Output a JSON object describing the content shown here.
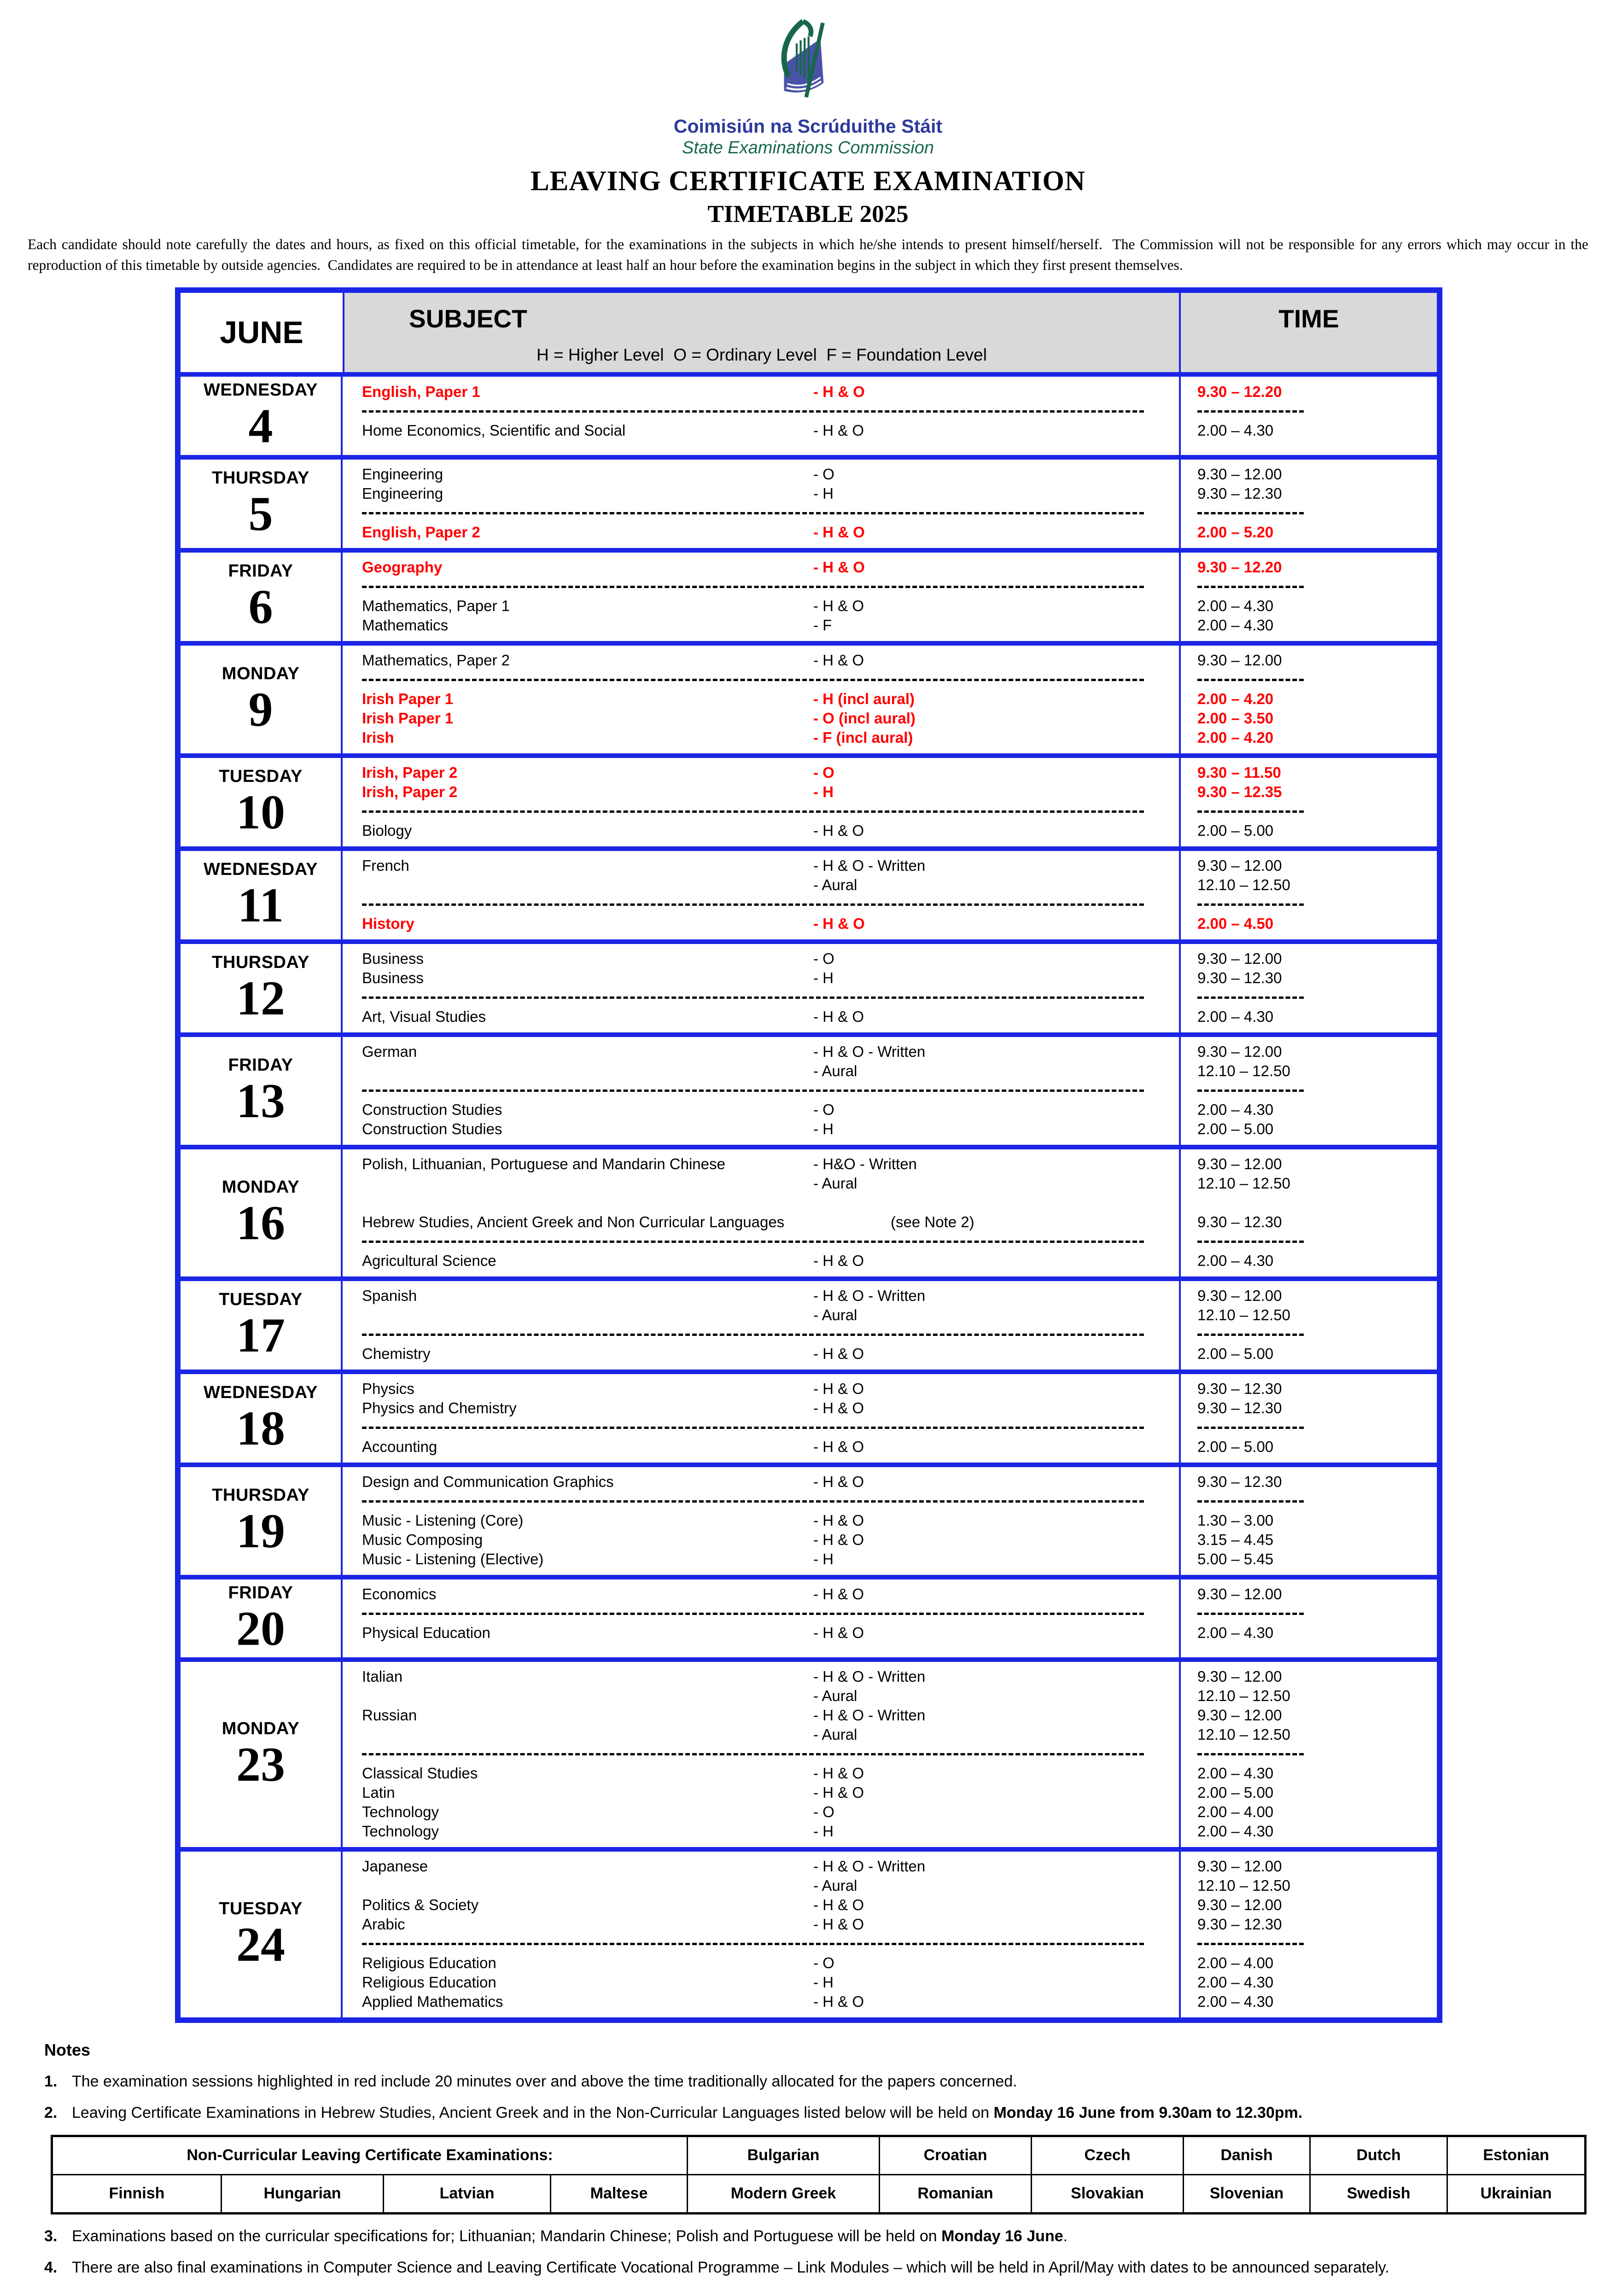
{
  "logo": {
    "irish_name": "Coimisiún na Scrúduithe Stáit",
    "english_name": "State Examinations Commission"
  },
  "title": "LEAVING CERTIFICATE EXAMINATION",
  "subtitle": "TIMETABLE 2025",
  "intro": "Each candidate should note carefully the dates and hours, as fixed on this official timetable, for the examinations in the subjects in which he/she intends to present himself/herself.  The Commission will not be responsible for any errors which may occur in the reproduction of this timetable by outside agencies.  Candidates are required to be in attendance at least half an hour before the examination begins in the subject in which they first present themselves.",
  "colors": {
    "border_blue": "#1b25e5",
    "highlight_red": "#ff0000",
    "header_gray": "#d9d9d9",
    "logo_blue": "#2c3a9c",
    "logo_green": "#17684a",
    "book_blue": "#4a52a8"
  },
  "timetable": {
    "month": "JUNE",
    "col_subject": "SUBJECT",
    "col_time": "TIME",
    "legend": "H = Higher Level  O = Ordinary Level  F = Foundation Level",
    "days": [
      {
        "name": "WEDNESDAY",
        "date": "4",
        "lines": [
          {
            "t": "e",
            "subject": "English, Paper 1",
            "level": "- H & O",
            "time": "9.30 – 12.20",
            "red": true
          },
          {
            "t": "s"
          },
          {
            "t": "e",
            "subject": "Home Economics, Scientific and Social",
            "level": "- H & O",
            "time": "2.00 – 4.30"
          }
        ]
      },
      {
        "name": "THURSDAY",
        "date": "5",
        "lines": [
          {
            "t": "e",
            "subject": "Engineering",
            "level": "- O",
            "time": "9.30 – 12.00"
          },
          {
            "t": "e",
            "subject": "Engineering",
            "level": "- H",
            "time": "9.30 – 12.30"
          },
          {
            "t": "s"
          },
          {
            "t": "e",
            "subject": "English, Paper 2",
            "level": "- H & O",
            "time": "2.00 – 5.20",
            "red": true
          }
        ]
      },
      {
        "name": "FRIDAY",
        "date": "6",
        "lines": [
          {
            "t": "e",
            "subject": "Geography",
            "level": "- H & O",
            "time": "9.30 – 12.20",
            "red": true
          },
          {
            "t": "s"
          },
          {
            "t": "e",
            "subject": "Mathematics, Paper 1",
            "level": "- H & O",
            "time": "2.00 – 4.30"
          },
          {
            "t": "e",
            "subject": "Mathematics",
            "level": "- F",
            "time": "2.00 – 4.30"
          }
        ]
      },
      {
        "name": "MONDAY",
        "date": "9",
        "lines": [
          {
            "t": "e",
            "subject": "Mathematics, Paper 2",
            "level": "- H & O",
            "time": "9.30 – 12.00"
          },
          {
            "t": "s"
          },
          {
            "t": "e",
            "subject": "Irish Paper 1",
            "level": "- H (incl aural)",
            "time": "2.00 – 4.20",
            "red": true
          },
          {
            "t": "e",
            "subject": "Irish Paper 1",
            "level": "- O (incl aural)",
            "time": "2.00 – 3.50",
            "red": true
          },
          {
            "t": "e",
            "subject": "Irish",
            "level": "- F (incl aural)",
            "time": "2.00 – 4.20",
            "red": true
          }
        ]
      },
      {
        "name": "TUESDAY",
        "date": "10",
        "lines": [
          {
            "t": "e",
            "subject": "Irish, Paper 2",
            "level": "- O",
            "time": "9.30 – 11.50",
            "red": true
          },
          {
            "t": "e",
            "subject": "Irish, Paper 2",
            "level": "- H",
            "time": "9.30 – 12.35",
            "red": true
          },
          {
            "t": "s"
          },
          {
            "t": "e",
            "subject": "Biology",
            "level": "- H & O",
            "time": "2.00 – 5.00"
          }
        ]
      },
      {
        "name": "WEDNESDAY",
        "date": "11",
        "lines": [
          {
            "t": "e",
            "subject": "French",
            "level": "- H & O - Written",
            "time": "9.30 – 12.00"
          },
          {
            "t": "e",
            "subject": "",
            "level": "- Aural",
            "time": "12.10 – 12.50"
          },
          {
            "t": "s"
          },
          {
            "t": "e",
            "subject": "History",
            "level": "- H & O",
            "time": "2.00 – 4.50",
            "red": true
          }
        ]
      },
      {
        "name": "THURSDAY",
        "date": "12",
        "lines": [
          {
            "t": "e",
            "subject": "Business",
            "level": "- O",
            "time": "9.30 – 12.00"
          },
          {
            "t": "e",
            "subject": "Business",
            "level": "- H",
            "time": "9.30 – 12.30"
          },
          {
            "t": "s"
          },
          {
            "t": "e",
            "subject": "Art, Visual Studies",
            "level": "- H & O",
            "time": "2.00 – 4.30"
          }
        ]
      },
      {
        "name": "FRIDAY",
        "date": "13",
        "lines": [
          {
            "t": "e",
            "subject": "German",
            "level": "- H & O - Written",
            "time": "9.30 – 12.00"
          },
          {
            "t": "e",
            "subject": "",
            "level": "- Aural",
            "time": "12.10 – 12.50"
          },
          {
            "t": "s"
          },
          {
            "t": "e",
            "subject": "Construction Studies",
            "level": "- O",
            "time": "2.00 – 4.30"
          },
          {
            "t": "e",
            "subject": "Construction Studies",
            "level": "- H",
            "time": "2.00 – 5.00"
          }
        ]
      },
      {
        "name": "MONDAY",
        "date": "16",
        "lines": [
          {
            "t": "e",
            "subject": "Polish, Lithuanian, Portuguese and Mandarin Chinese",
            "level": "- H&O - Written",
            "time": "9.30 – 12.00"
          },
          {
            "t": "e",
            "subject": "",
            "level": "- Aural",
            "time": "12.10 – 12.50"
          },
          {
            "t": "g"
          },
          {
            "t": "e",
            "subject": "Hebrew Studies, Ancient Greek and Non Curricular Languages",
            "level": "(see Note 2)",
            "time": "9.30 – 12.30",
            "shift": true
          },
          {
            "t": "s"
          },
          {
            "t": "e",
            "subject": "Agricultural Science",
            "level": "- H & O",
            "time": "2.00 – 4.30"
          }
        ]
      },
      {
        "name": "TUESDAY",
        "date": "17",
        "lines": [
          {
            "t": "e",
            "subject": "Spanish",
            "level": "- H & O - Written",
            "time": "9.30 – 12.00"
          },
          {
            "t": "e",
            "subject": "",
            "level": "- Aural",
            "time": "12.10 – 12.50"
          },
          {
            "t": "s"
          },
          {
            "t": "e",
            "subject": "Chemistry",
            "level": "- H & O",
            "time": "2.00 – 5.00"
          }
        ]
      },
      {
        "name": "WEDNESDAY",
        "date": "18",
        "lines": [
          {
            "t": "e",
            "subject": "Physics",
            "level": "- H & O",
            "time": "9.30 – 12.30"
          },
          {
            "t": "e",
            "subject": "Physics and Chemistry",
            "level": "- H & O",
            "time": "9.30 – 12.30"
          },
          {
            "t": "s"
          },
          {
            "t": "e",
            "subject": "Accounting",
            "level": "- H & O",
            "time": "2.00 – 5.00"
          }
        ]
      },
      {
        "name": "THURSDAY",
        "date": "19",
        "lines": [
          {
            "t": "e",
            "subject": "Design and Communication Graphics",
            "level": "- H & O",
            "time": "9.30 – 12.30"
          },
          {
            "t": "s"
          },
          {
            "t": "e",
            "subject": "Music - Listening (Core)",
            "level": "- H & O",
            "time": "1.30 – 3.00"
          },
          {
            "t": "e",
            "subject": "Music Composing",
            "level": "- H & O",
            "time": "3.15 – 4.45"
          },
          {
            "t": "e",
            "subject": "Music - Listening (Elective)",
            "level": "- H",
            "time": "5.00 – 5.45"
          }
        ]
      },
      {
        "name": "FRIDAY",
        "date": "20",
        "lines": [
          {
            "t": "e",
            "subject": "Economics",
            "level": "- H & O",
            "time": "9.30 – 12.00"
          },
          {
            "t": "s"
          },
          {
            "t": "e",
            "subject": "Physical Education",
            "level": "- H & O",
            "time": "2.00 – 4.30"
          }
        ]
      },
      {
        "name": "MONDAY",
        "date": "23",
        "lines": [
          {
            "t": "e",
            "subject": "Italian",
            "level": "- H & O - Written",
            "time": "9.30 – 12.00"
          },
          {
            "t": "e",
            "subject": "",
            "level": "- Aural",
            "time": "12.10 – 12.50"
          },
          {
            "t": "e",
            "subject": "Russian",
            "level": "- H & O - Written",
            "time": "9.30 – 12.00"
          },
          {
            "t": "e",
            "subject": "",
            "level": "- Aural",
            "time": "12.10 – 12.50"
          },
          {
            "t": "s"
          },
          {
            "t": "e",
            "subject": "Classical Studies",
            "level": "- H & O",
            "time": "2.00 – 4.30"
          },
          {
            "t": "e",
            "subject": "Latin",
            "level": "- H & O",
            "time": "2.00 – 5.00"
          },
          {
            "t": "e",
            "subject": "Technology",
            "level": "- O",
            "time": "2.00 – 4.00"
          },
          {
            "t": "e",
            "subject": "Technology",
            "level": "- H",
            "time": "2.00 – 4.30"
          }
        ]
      },
      {
        "name": "TUESDAY",
        "date": "24",
        "lines": [
          {
            "t": "e",
            "subject": "Japanese",
            "level": "- H & O - Written",
            "time": "9.30 – 12.00"
          },
          {
            "t": "e",
            "subject": "",
            "level": "- Aural",
            "time": "12.10 – 12.50"
          },
          {
            "t": "e",
            "subject": "Politics & Society",
            "level": "- H & O",
            "time": "9.30 – 12.00"
          },
          {
            "t": "e",
            "subject": "Arabic",
            "level": "- H & O",
            "time": "9.30 – 12.30"
          },
          {
            "t": "s"
          },
          {
            "t": "e",
            "subject": "Religious Education",
            "level": "- O",
            "time": "2.00 – 4.00"
          },
          {
            "t": "e",
            "subject": "Religious Education",
            "level": "- H",
            "time": "2.00 – 4.30"
          },
          {
            "t": "e",
            "subject": "Applied Mathematics",
            "level": "- H & O",
            "time": "2.00 – 4.30"
          }
        ]
      }
    ]
  },
  "notes": {
    "title": "Notes",
    "items": [
      {
        "num": "1.",
        "pre": "The examination sessions highlighted in red include 20 minutes over and above the time traditionally allocated for the papers concerned.",
        "bold": "",
        "post": ""
      },
      {
        "num": "2.",
        "pre": "Leaving Certificate Examinations in Hebrew Studies, Ancient Greek and in the Non-Curricular Languages listed below will be held on ",
        "bold": "Monday 16 June from 9.30am to 12.30pm.",
        "post": ""
      },
      {
        "num": "3.",
        "pre": "Examinations based on the curricular specifications for; Lithuanian; Mandarin Chinese; Polish and Portuguese will be held on ",
        "bold": "Monday 16 June",
        "post": "."
      },
      {
        "num": "4.",
        "pre": "There are also final examinations in Computer Science and Leaving Certificate Vocational Programme – Link Modules – which will be held in April/May with dates to be announced separately.",
        "bold": "",
        "post": ""
      }
    ]
  },
  "language_table": {
    "header": "Non-Curricular Leaving Certificate Examinations:",
    "row1": [
      "Bulgarian",
      "Croatian",
      "Czech",
      "Danish",
      "Dutch",
      "Estonian"
    ],
    "row2": [
      "Finnish",
      "Hungarian",
      "Latvian",
      "Maltese",
      "Modern Greek",
      "Romanian",
      "Slovakian",
      "Slovenian",
      "Swedish",
      "Ukrainian"
    ]
  }
}
